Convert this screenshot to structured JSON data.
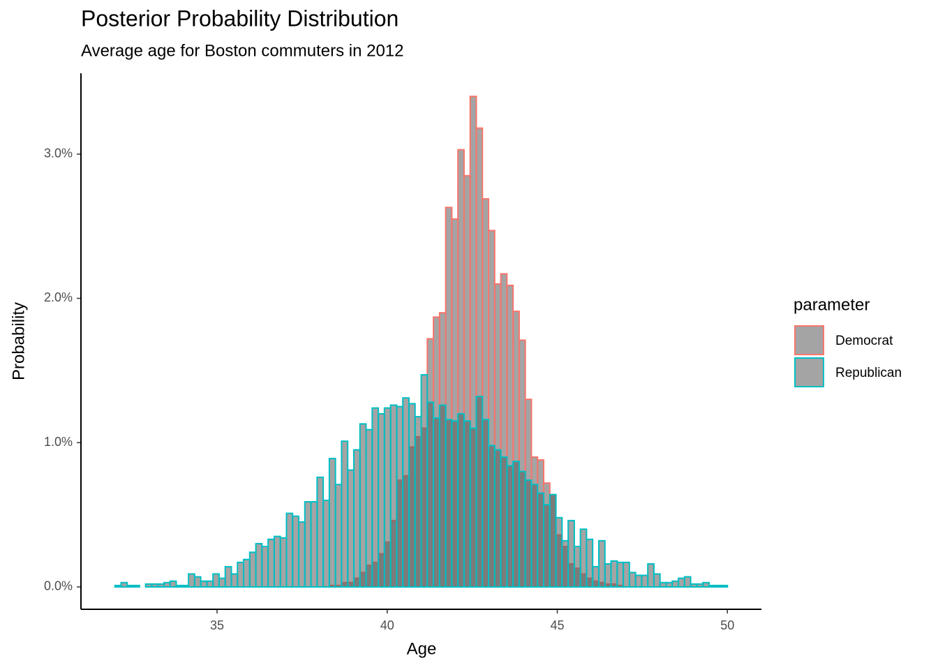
{
  "chart_data": {
    "type": "histogram",
    "title": "Posterior Probability Distribution",
    "subtitle": "Average age for Boston commuters in 2012",
    "x_label": "Age",
    "y_label": "Probability",
    "legend_title": "parameter",
    "legend": "right",
    "bins": [
      32,
      32.18,
      32.36,
      32.54,
      32.72,
      32.9,
      33.08,
      33.26,
      33.44,
      33.62,
      33.8,
      33.98,
      34.16,
      34.34,
      34.52,
      34.7,
      34.88,
      35.06,
      35.24,
      35.42,
      35.6,
      35.78,
      35.96,
      36.14,
      36.32,
      36.5,
      36.68,
      36.86,
      37.04,
      37.22,
      37.4,
      37.58,
      37.76,
      37.94,
      38.12,
      38.3,
      38.48,
      38.66,
      38.84,
      39.02,
      39.2,
      39.38,
      39.56,
      39.74,
      39.92,
      40.1,
      40.28,
      40.46,
      40.64,
      40.82,
      41,
      41.18,
      41.36,
      41.54,
      41.72,
      41.9,
      42.08,
      42.26,
      42.44,
      42.62,
      42.8,
      42.98,
      43.16,
      43.34,
      43.52,
      43.7,
      43.88,
      44.06,
      44.24,
      44.42,
      44.6,
      44.78,
      44.96,
      45.14,
      45.32,
      45.5,
      45.68,
      45.86,
      46.04,
      46.22,
      46.4,
      46.58,
      46.76,
      46.94,
      47.12,
      47.3,
      47.48,
      47.66,
      47.84,
      48.02,
      48.2,
      48.38,
      48.56,
      48.74,
      48.92,
      49.1,
      49.28,
      49.46,
      49.64,
      49.82,
      50
    ],
    "fill": "#595959",
    "series": [
      {
        "name": "Democrat",
        "color": "#F8766D",
        "values": [
          0,
          0,
          0,
          0,
          0,
          0,
          0,
          0,
          0,
          0,
          0,
          0,
          0,
          0,
          0,
          0,
          0,
          0,
          0,
          0,
          0,
          0,
          0,
          0,
          0,
          0,
          0,
          0,
          0,
          0,
          0,
          0,
          0,
          0,
          0,
          0.01,
          0.01,
          0.03,
          0.03,
          0.06,
          0.1,
          0.15,
          0.17,
          0.23,
          0.31,
          0.46,
          0.74,
          0.77,
          0.97,
          1.04,
          1.1,
          1.72,
          1.87,
          1.9,
          2.63,
          2.55,
          3.03,
          2.85,
          3.4,
          3.18,
          2.69,
          2.47,
          2.1,
          2.17,
          2.09,
          1.91,
          1.71,
          1.3,
          0.9,
          0.88,
          0.72,
          0.64,
          0.36,
          0.28,
          0.16,
          0.13,
          0.09,
          0.06,
          0.04,
          0.03,
          0.02,
          0.02,
          0.01,
          0,
          0,
          0,
          0,
          0,
          0,
          0,
          0,
          0,
          0,
          0,
          0,
          0,
          0,
          0,
          0,
          0
        ]
      },
      {
        "name": "Republican",
        "color": "#00BFC4",
        "values": [
          0.01,
          0.03,
          0.01,
          0.01,
          0,
          0.02,
          0.02,
          0.02,
          0.03,
          0.04,
          0.01,
          0.01,
          0.09,
          0.07,
          0.04,
          0.04,
          0.09,
          0.06,
          0.14,
          0.09,
          0.17,
          0.19,
          0.24,
          0.3,
          0.28,
          0.33,
          0.35,
          0.34,
          0.51,
          0.49,
          0.45,
          0.59,
          0.59,
          0.76,
          0.6,
          0.89,
          0.71,
          1.01,
          0.81,
          0.95,
          1.13,
          1.09,
          1.24,
          1.2,
          1.24,
          1.26,
          1.25,
          1.31,
          1.27,
          1.18,
          1.47,
          1.28,
          1.17,
          1.26,
          1.16,
          1.15,
          1.2,
          1.15,
          1.1,
          1.32,
          1.16,
          0.98,
          0.95,
          0.9,
          0.84,
          0.87,
          0.8,
          0.74,
          0.71,
          0.65,
          0.57,
          0.64,
          0.48,
          0.32,
          0.46,
          0.28,
          0.4,
          0.33,
          0.14,
          0.32,
          0.16,
          0.18,
          0.17,
          0.17,
          0.1,
          0.08,
          0.08,
          0.16,
          0.09,
          0.03,
          0.03,
          0.04,
          0.06,
          0.07,
          0.02,
          0.02,
          0.03,
          0.01,
          0.01,
          0.01
        ]
      }
    ],
    "xlim": [
      31,
      51
    ],
    "xticks": [
      35,
      40,
      45,
      50
    ],
    "ylim": [
      -0.155,
      3.56
    ],
    "yticks": [
      {
        "value": 0,
        "label": "0.0%"
      },
      {
        "value": 1,
        "label": "1.0%"
      },
      {
        "value": 2,
        "label": "2.0%"
      },
      {
        "value": 3,
        "label": "3.0%"
      }
    ]
  }
}
